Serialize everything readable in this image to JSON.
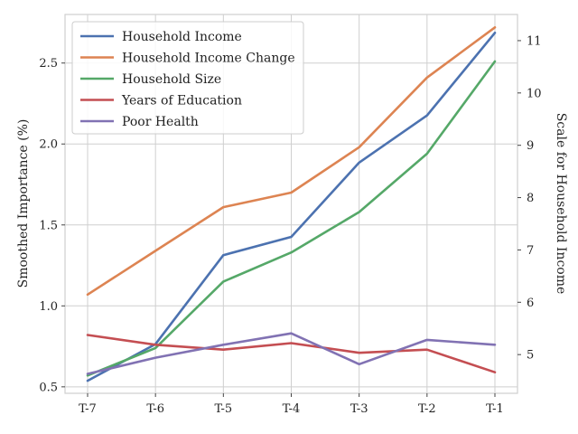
{
  "chart_data": {
    "type": "line",
    "categories": [
      "T-7",
      "T-6",
      "T-5",
      "T-4",
      "T-3",
      "T-2",
      "T-1"
    ],
    "ylabel": "Smoothed Importance (%)",
    "y2label": "Scale for Household Income",
    "ylim": [
      0.46,
      2.8
    ],
    "y2lim": [
      4.26,
      11.5
    ],
    "yticks": [
      0.5,
      1.0,
      1.5,
      2.0,
      2.5
    ],
    "yticklabels": [
      "0.5",
      "1.0",
      "1.5",
      "2.0",
      "2.5"
    ],
    "y2ticks": [
      5,
      6,
      7,
      8,
      9,
      10,
      11
    ],
    "y2ticklabels": [
      "5",
      "6",
      "7",
      "8",
      "9",
      "10",
      "11"
    ],
    "grid": true,
    "legend_position": "top-left",
    "series": [
      {
        "name": "Household Income",
        "axis": "right",
        "color": "#4c72b0",
        "values": [
          4.5,
          5.2,
          6.9,
          7.25,
          8.67,
          9.57,
          11.15
        ]
      },
      {
        "name": "Household Income Change",
        "axis": "left",
        "color": "#dd8452",
        "values": [
          1.07,
          1.34,
          1.61,
          1.7,
          1.98,
          2.41,
          2.72
        ]
      },
      {
        "name": "Household Size",
        "axis": "left",
        "color": "#55a868",
        "values": [
          0.57,
          0.74,
          1.15,
          1.33,
          1.58,
          1.94,
          2.51
        ]
      },
      {
        "name": "Years of Education",
        "axis": "left",
        "color": "#c44e52",
        "values": [
          0.82,
          0.76,
          0.73,
          0.77,
          0.71,
          0.73,
          0.59
        ]
      },
      {
        "name": "Poor Health",
        "axis": "left",
        "color": "#8172b3",
        "values": [
          0.58,
          0.68,
          0.76,
          0.83,
          0.64,
          0.79,
          0.76
        ]
      }
    ]
  }
}
